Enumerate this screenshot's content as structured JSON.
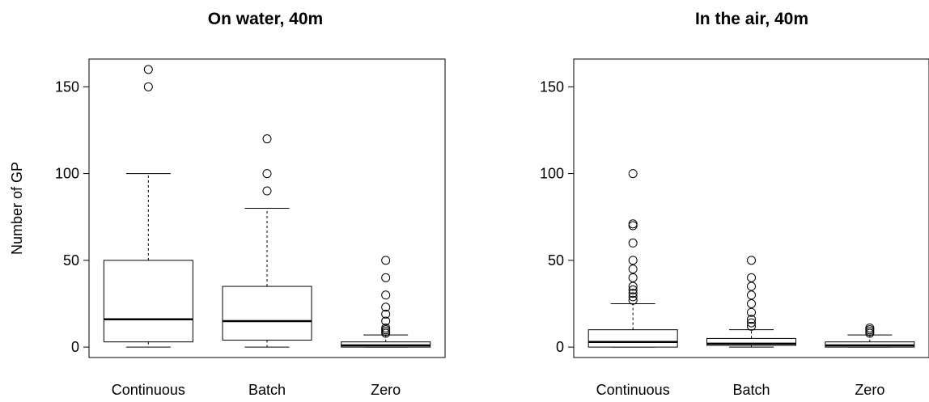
{
  "chart_data": [
    {
      "type": "boxplot",
      "title": "On water, 40m",
      "ylabel": "Number of GP",
      "ylim": [
        -6,
        166
      ],
      "yticks": [
        0,
        50,
        100,
        150
      ],
      "categories": [
        "Continuous",
        "Batch",
        "Zero"
      ],
      "boxes": [
        {
          "name": "Continuous",
          "min": 0,
          "q1": 3,
          "median": 16,
          "q3": 50,
          "max": 100,
          "outliers": [
            150,
            160
          ]
        },
        {
          "name": "Batch",
          "min": 0,
          "q1": 4,
          "median": 15,
          "q3": 35,
          "max": 80,
          "outliers": [
            90,
            100,
            120
          ]
        },
        {
          "name": "Zero",
          "min": 0,
          "q1": 0,
          "median": 1,
          "q3": 3,
          "max": 7,
          "outliers": [
            8,
            9,
            10,
            11,
            15,
            19,
            23,
            30,
            40,
            50
          ]
        }
      ]
    },
    {
      "type": "boxplot",
      "title": "In the air, 40m",
      "ylabel": "",
      "ylim": [
        -6,
        166
      ],
      "yticks": [
        0,
        50,
        100,
        150
      ],
      "categories": [
        "Continuous",
        "Batch",
        "Zero"
      ],
      "boxes": [
        {
          "name": "Continuous",
          "min": 0,
          "q1": 0,
          "median": 3,
          "q3": 10,
          "max": 25,
          "outliers": [
            27,
            29,
            31,
            33,
            35,
            40,
            45,
            50,
            60,
            70,
            71,
            100
          ]
        },
        {
          "name": "Batch",
          "min": 0,
          "q1": 1,
          "median": 2,
          "q3": 5,
          "max": 10,
          "outliers": [
            12,
            14,
            16,
            20,
            25,
            30,
            35,
            40,
            50
          ]
        },
        {
          "name": "Zero",
          "min": 0,
          "q1": 0,
          "median": 1,
          "q3": 3,
          "max": 7,
          "outliers": [
            8,
            9,
            10,
            11
          ]
        }
      ]
    }
  ]
}
